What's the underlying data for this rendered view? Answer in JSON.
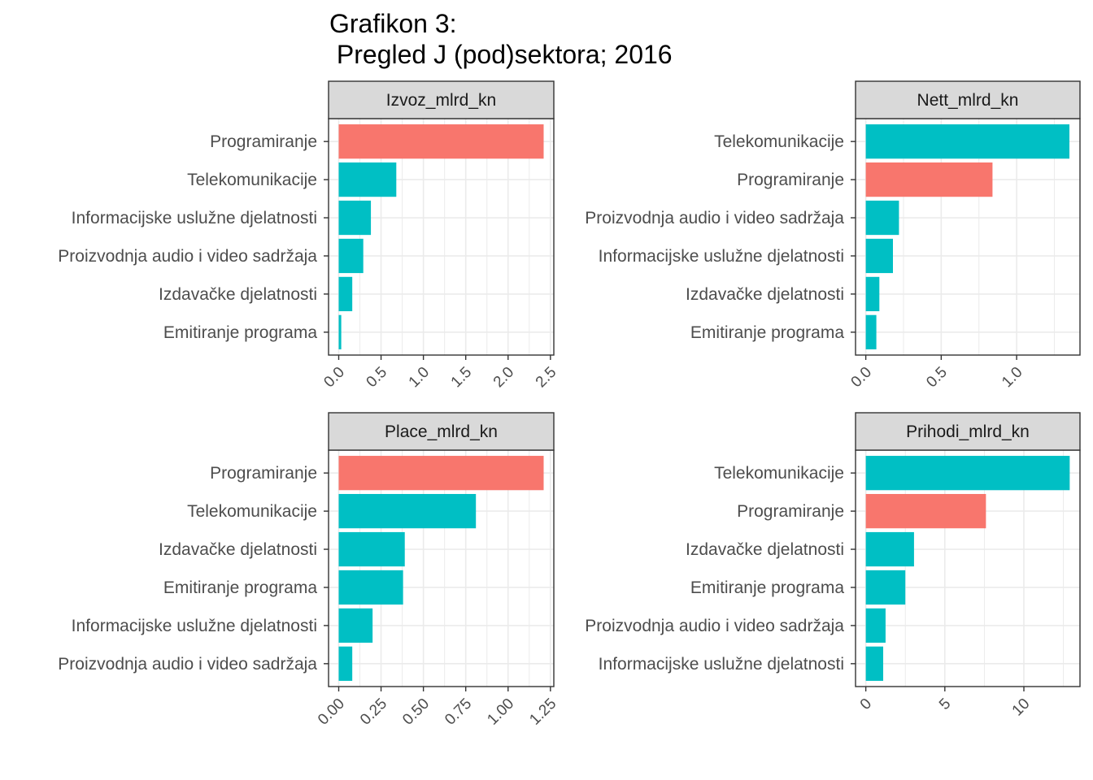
{
  "title_line1": "Grafikon 3:",
  "title_line2": " Pregled J (pod)sektora; 2016",
  "colors": {
    "highlight": "#F8766D",
    "other": "#00BFC4",
    "strip_bg": "#D9D9D9",
    "grid": "#EBEBEB",
    "panel_border": "#333333"
  },
  "chart_data": [
    {
      "type": "bar",
      "orientation": "horizontal",
      "facet": "Izvoz_mlrd_kn",
      "categories": [
        "Programiranje",
        "Telekomunikacije",
        "Informacijske uslužne djelatnosti",
        "Proizvodnja audio i video sadržaja",
        "Izdavačke djelatnosti",
        "Emitiranje programa"
      ],
      "values": [
        2.42,
        0.68,
        0.38,
        0.29,
        0.16,
        0.03
      ],
      "highlight": "Programiranje",
      "xlim": [
        -0.12,
        2.54
      ],
      "ticks": [
        0,
        0.5,
        1,
        1.5,
        2,
        2.5
      ],
      "tick_labels": [
        "0.0",
        "0.5",
        "1.0",
        "1.5",
        "2.0",
        "2.5"
      ]
    },
    {
      "type": "bar",
      "orientation": "horizontal",
      "facet": "Nett_mlrd_kn",
      "categories": [
        "Telekomunikacije",
        "Programiranje",
        "Proizvodnja audio i video sadržaja",
        "Informacijske uslužne djelatnosti",
        "Izdavačke djelatnosti",
        "Emitiranje programa"
      ],
      "values": [
        1.35,
        0.84,
        0.22,
        0.18,
        0.09,
        0.07
      ],
      "highlight": "Programiranje",
      "xlim": [
        -0.068,
        1.42
      ],
      "ticks": [
        0,
        0.5,
        1
      ],
      "tick_labels": [
        "0.0",
        "0.5",
        "1.0"
      ]
    },
    {
      "type": "bar",
      "orientation": "horizontal",
      "facet": "Place_mlrd_kn",
      "categories": [
        "Programiranje",
        "Telekomunikacije",
        "Izdavačke djelatnosti",
        "Emitiranje programa",
        "Informacijske uslužne djelatnosti",
        "Proizvodnja audio i video sadržaja"
      ],
      "values": [
        1.21,
        0.81,
        0.39,
        0.38,
        0.2,
        0.08
      ],
      "highlight": "Programiranje",
      "xlim": [
        -0.06,
        1.27
      ],
      "ticks": [
        0,
        0.25,
        0.5,
        0.75,
        1,
        1.25
      ],
      "tick_labels": [
        "0.00",
        "0.25",
        "0.50",
        "0.75",
        "1.00",
        "1.25"
      ]
    },
    {
      "type": "bar",
      "orientation": "horizontal",
      "facet": "Prihodi_mlrd_kn",
      "categories": [
        "Telekomunikacije",
        "Programiranje",
        "Izdavačke djelatnosti",
        "Emitiranje programa",
        "Proizvodnja audio i video sadržaja",
        "Informacijske uslužne djelatnosti"
      ],
      "values": [
        12.9,
        7.6,
        3.05,
        2.5,
        1.25,
        1.1
      ],
      "highlight": "Programiranje",
      "xlim": [
        -0.65,
        13.55
      ],
      "ticks": [
        0,
        5,
        10
      ],
      "tick_labels": [
        "0",
        "5",
        "10"
      ]
    }
  ]
}
